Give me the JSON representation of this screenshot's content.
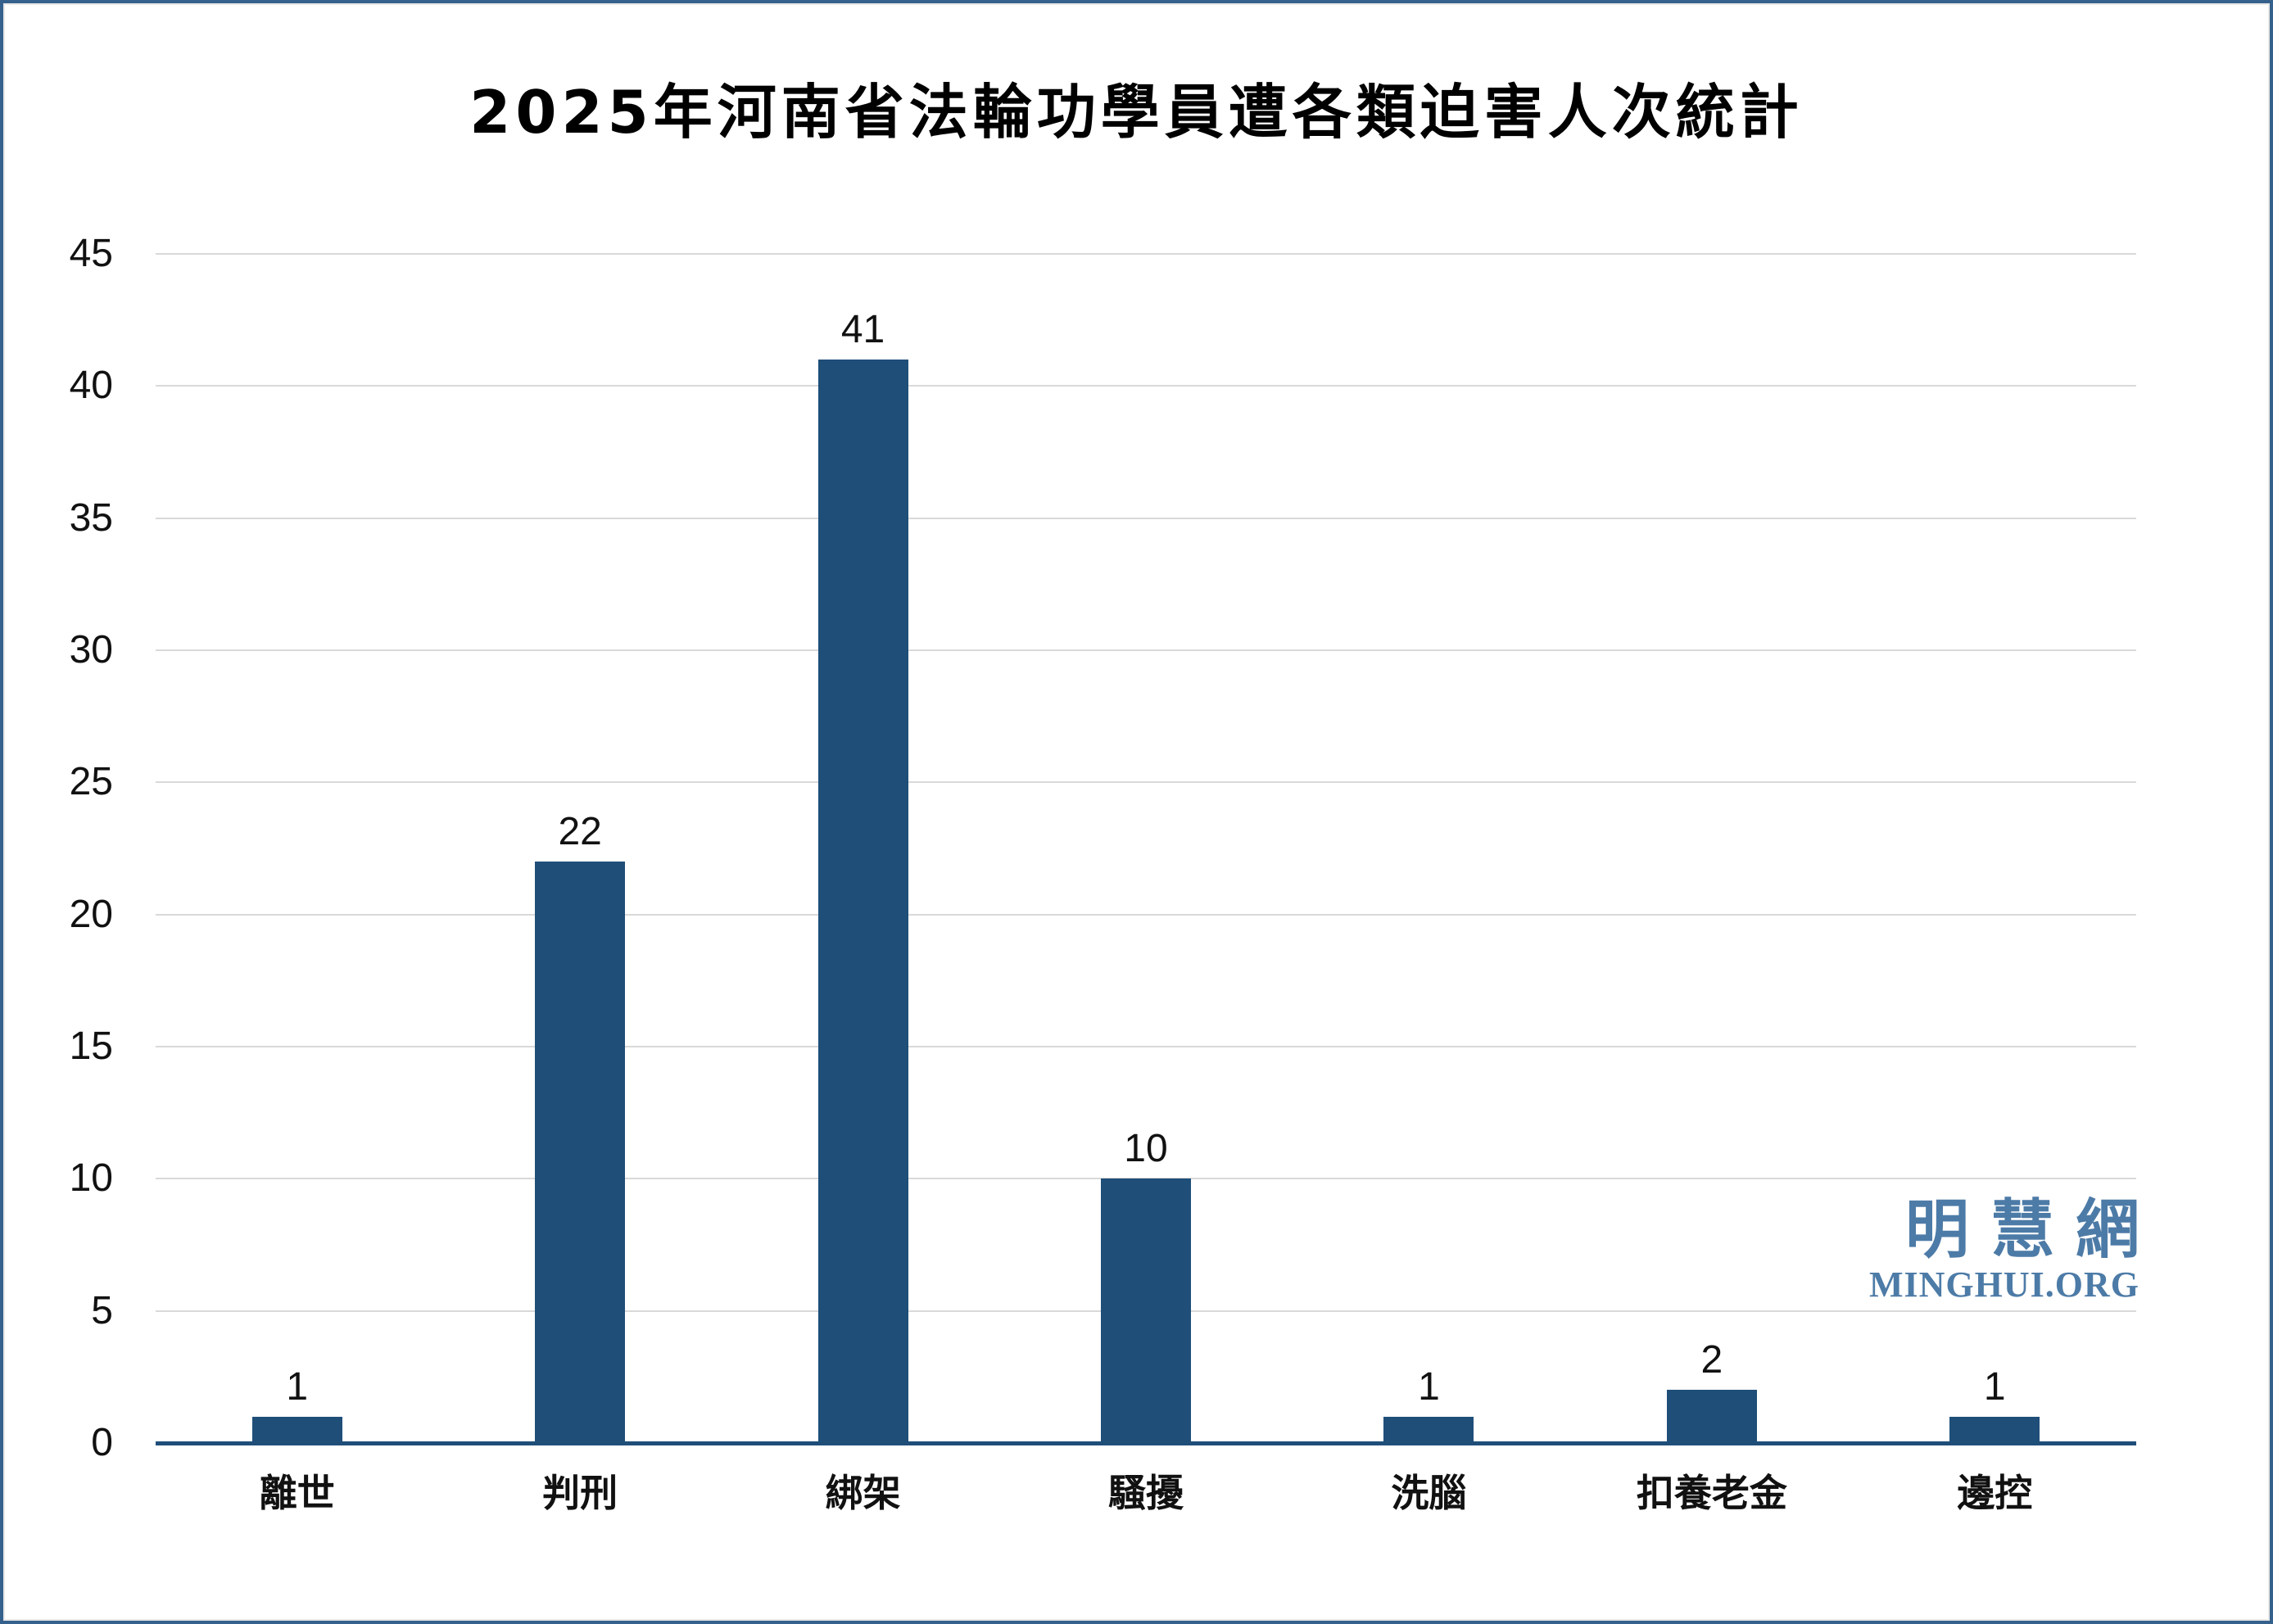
{
  "title": "2025年河南省法輪功學員遭各類迫害人次統計",
  "watermark": {
    "cjk": "明慧網",
    "latin": "MINGHUI.ORG"
  },
  "colors": {
    "bar": "#1f4e79",
    "axis_line": "#1f4e79",
    "gridline": "#d9d9d9",
    "frame_border": "#35618c",
    "text": "#111111",
    "watermark": "#4d7ba7",
    "background": "#ffffff"
  },
  "y_axis": {
    "ticks": [
      "0",
      "5",
      "10",
      "15",
      "20",
      "25",
      "30",
      "35",
      "40",
      "45"
    ],
    "min": 0,
    "max": 45,
    "step": 5
  },
  "chart_data": {
    "type": "bar",
    "title": "2025年河南省法輪功學員遭各類迫害人次統計",
    "categories": [
      "離世",
      "判刑",
      "綁架",
      "騷擾",
      "洗腦",
      "扣養老金",
      "邊控"
    ],
    "values": [
      1,
      22,
      41,
      10,
      1,
      2,
      1
    ],
    "data_labels": [
      "1",
      "22",
      "41",
      "10",
      "1",
      "2",
      "1"
    ],
    "xlabel": "",
    "ylabel": "",
    "ylim": [
      0,
      45
    ],
    "ytick_step": 5,
    "grid": "horizontal",
    "legend": false,
    "bar_color": "#1f4e79"
  }
}
